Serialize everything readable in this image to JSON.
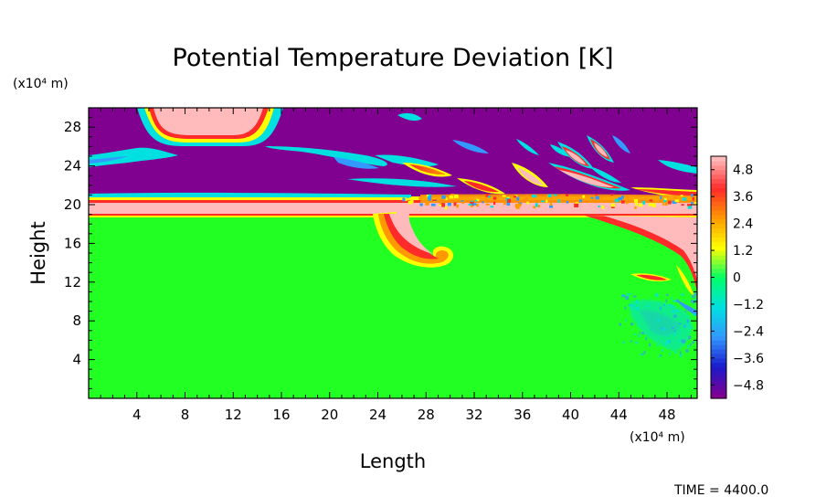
{
  "chart_data": {
    "type": "heatmap",
    "title": "Potential Temperature Deviation [K]",
    "xlabel": "Length",
    "ylabel": "Height",
    "x_unit": "(x10⁴ m)",
    "y_unit": "(x10⁴ m)",
    "xlim": [
      0,
      50.5
    ],
    "ylim": [
      0,
      30
    ],
    "x_ticks": [
      "4",
      "8",
      "12",
      "16",
      "20",
      "24",
      "28",
      "32",
      "36",
      "40",
      "44",
      "48"
    ],
    "y_ticks": [
      "4",
      "8",
      "12",
      "16",
      "20",
      "24",
      "28"
    ],
    "colorbar": {
      "range": [
        -5.4,
        5.4
      ],
      "ticks": [
        "4.8",
        "3.6",
        "2.4",
        "1.2",
        "0",
        "−1.2",
        "−2.4",
        "−3.6",
        "−4.8"
      ],
      "colors": [
        "#800090",
        "#1a1acc",
        "#3399ff",
        "#00e0e0",
        "#00ff66",
        "#ffff00",
        "#ff9900",
        "#ff2a2a",
        "#ffbbbb"
      ]
    },
    "features": [
      {
        "kind": "stratosphere-background",
        "value": -5.0,
        "region": "y 20.5-30"
      },
      {
        "kind": "tropopause-warm-band",
        "value": 5.0,
        "region": "y 19-20.5"
      },
      {
        "kind": "troposphere-background",
        "value": 0.0,
        "region": "y 0-19"
      },
      {
        "kind": "warm-anomaly",
        "value": 5.0,
        "center": [
          9.5,
          28.3
        ],
        "region": "x 6.5-13.5"
      },
      {
        "kind": "gravity-waves",
        "region": "x 26-50, y 20-27"
      },
      {
        "kind": "density-current-head",
        "center": [
          28.5,
          15
        ],
        "region": "x 24-32, y 14-19"
      },
      {
        "kind": "density-current-tail",
        "region": "x 44-50.5, y 10-19"
      }
    ]
  },
  "footer": {
    "time_text": "TIME = 4400.0"
  }
}
